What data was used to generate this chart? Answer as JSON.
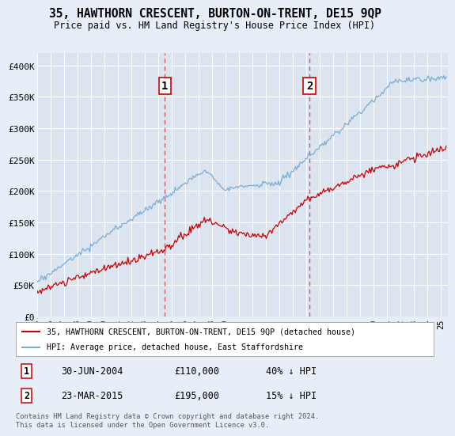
{
  "title": "35, HAWTHORN CRESCENT, BURTON-ON-TRENT, DE15 9QP",
  "subtitle": "Price paid vs. HM Land Registry's House Price Index (HPI)",
  "legend_line1": "35, HAWTHORN CRESCENT, BURTON-ON-TRENT, DE15 9QP (detached house)",
  "legend_line2": "HPI: Average price, detached house, East Staffordshire",
  "sale1_date": "30-JUN-2004",
  "sale1_price": "£110,000",
  "sale1_hpi": "40% ↓ HPI",
  "sale1_year": 2004.5,
  "sale1_value": 110000,
  "sale2_date": "23-MAR-2015",
  "sale2_price": "£195,000",
  "sale2_hpi": "15% ↓ HPI",
  "sale2_year": 2015.25,
  "sale2_value": 195000,
  "ylim": [
    0,
    420000
  ],
  "xlim_start": 1995,
  "xlim_end": 2025.5,
  "yticks": [
    0,
    50000,
    100000,
    150000,
    200000,
    250000,
    300000,
    350000,
    400000
  ],
  "ytick_labels": [
    "£0",
    "£50K",
    "£100K",
    "£150K",
    "£200K",
    "£250K",
    "£300K",
    "£350K",
    "£400K"
  ],
  "xticks": [
    1995,
    1996,
    1997,
    1998,
    1999,
    2000,
    2001,
    2002,
    2003,
    2004,
    2005,
    2006,
    2007,
    2008,
    2009,
    2010,
    2011,
    2012,
    2013,
    2014,
    2015,
    2016,
    2017,
    2018,
    2019,
    2020,
    2021,
    2022,
    2023,
    2024,
    2025
  ],
  "background_color": "#e8eef8",
  "plot_bg_color": "#dce4f0",
  "grid_color": "#ffffff",
  "line_color_red": "#cc0000",
  "line_color_blue": "#7aadd4",
  "dashed_color": "#cc4444",
  "footnote": "Contains HM Land Registry data © Crown copyright and database right 2024.\nThis data is licensed under the Open Government Licence v3.0."
}
